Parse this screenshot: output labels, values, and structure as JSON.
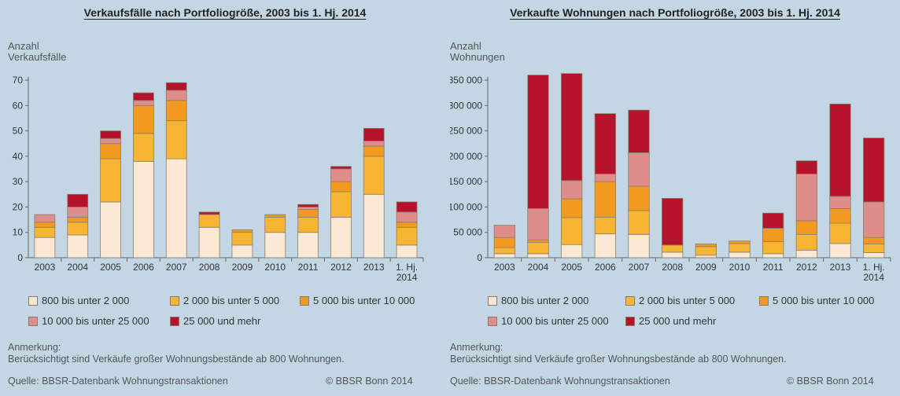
{
  "chart_data": [
    {
      "type": "bar",
      "stacked": true,
      "title": "Verkaufsfälle nach Portfoliogröße, 2003 bis 1. Hj. 2014",
      "ylabel": "Anzahl\nVerkaufsfälle",
      "ylim": [
        0,
        70
      ],
      "yticks": [
        0,
        10,
        20,
        30,
        40,
        50,
        60,
        70
      ],
      "ytick_labels": [
        "0",
        "10",
        "20",
        "30",
        "40",
        "50",
        "60",
        "70"
      ],
      "categories": [
        "2003",
        "2004",
        "2005",
        "2006",
        "2007",
        "2008",
        "2009",
        "2010",
        "2011",
        "2012",
        "2013",
        "1. Hj.\n2014"
      ],
      "series": [
        {
          "name": "800 bis unter 2 000",
          "color": "#fbe9d4",
          "values": [
            8,
            9,
            22,
            38,
            39,
            12,
            5,
            10,
            10,
            16,
            25,
            5
          ]
        },
        {
          "name": "2 000 bis unter 5 000",
          "color": "#f6b533",
          "values": [
            4,
            5,
            17,
            11,
            15,
            5,
            5,
            6,
            6,
            10,
            15,
            7
          ]
        },
        {
          "name": "5 000 bis unter 10 000",
          "color": "#f29a1f",
          "values": [
            2,
            2,
            6,
            11,
            8,
            0,
            1,
            1,
            3,
            4,
            4,
            2
          ]
        },
        {
          "name": "10 000 bis unter 25 000",
          "color": "#df8d8b",
          "values": [
            3,
            4,
            2,
            2,
            4,
            0,
            0,
            0,
            1,
            5,
            2,
            4
          ]
        },
        {
          "name": "25 000 und mehr",
          "color": "#b5122b",
          "values": [
            0,
            5,
            3,
            3,
            3,
            1,
            0,
            0,
            1,
            1,
            5,
            4
          ]
        }
      ]
    },
    {
      "type": "bar",
      "stacked": true,
      "title": "Verkaufte Wohnungen nach Portfoliogröße, 2003 bis 1. Hj. 2014",
      "ylabel": "Anzahl\nWohnungen",
      "ylim": [
        0,
        350000
      ],
      "yticks": [
        0,
        50000,
        100000,
        150000,
        200000,
        250000,
        300000,
        350000
      ],
      "ytick_labels": [
        "0",
        "50 000",
        "100 000",
        "150 000",
        "200 000",
        "250 000",
        "300 000",
        "350 000"
      ],
      "categories": [
        "2003",
        "2004",
        "2005",
        "2006",
        "2007",
        "2008",
        "2009",
        "2010",
        "2011",
        "2012",
        "2013",
        "1. Hj.\n2014"
      ],
      "series": [
        {
          "name": "800 bis unter 2 000",
          "color": "#fbe9d4",
          "values": [
            8000,
            8000,
            26000,
            47000,
            46000,
            11000,
            5000,
            11000,
            8000,
            15000,
            28000,
            10000
          ]
        },
        {
          "name": "2 000 bis unter 5 000",
          "color": "#f6b533",
          "values": [
            12000,
            22000,
            53000,
            33000,
            47000,
            14000,
            17000,
            17000,
            24000,
            31000,
            40000,
            17000
          ]
        },
        {
          "name": "5 000 bis unter 10 000",
          "color": "#f29a1f",
          "values": [
            20000,
            5000,
            37000,
            70000,
            48000,
            0,
            5000,
            5000,
            26000,
            27000,
            29000,
            13000
          ]
        },
        {
          "name": "10 000 bis unter 25 000",
          "color": "#df8d8b",
          "values": [
            24000,
            62000,
            36000,
            15000,
            66000,
            0,
            0,
            0,
            0,
            92000,
            24000,
            70000
          ]
        },
        {
          "name": "25 000 und mehr",
          "color": "#b5122b",
          "values": [
            0,
            263000,
            211000,
            119000,
            84000,
            92000,
            0,
            0,
            30000,
            26000,
            182000,
            126000
          ]
        }
      ]
    }
  ],
  "legend_labels": [
    "800 bis unter 2 000",
    "2 000 bis unter 5 000",
    "5 000 bis unter 10 000",
    "10 000 bis unter 25 000",
    "25 000 und mehr"
  ],
  "notes": {
    "heading": "Anmerkung:",
    "text": "Berücksichtigt sind  Verkäufe großer Wohnungsbestände ab 800 Wohnungen.",
    "source": "Quelle: BBSR-Datenbank Wohnungstransaktionen",
    "copyright": "© BBSR Bonn 2014"
  }
}
